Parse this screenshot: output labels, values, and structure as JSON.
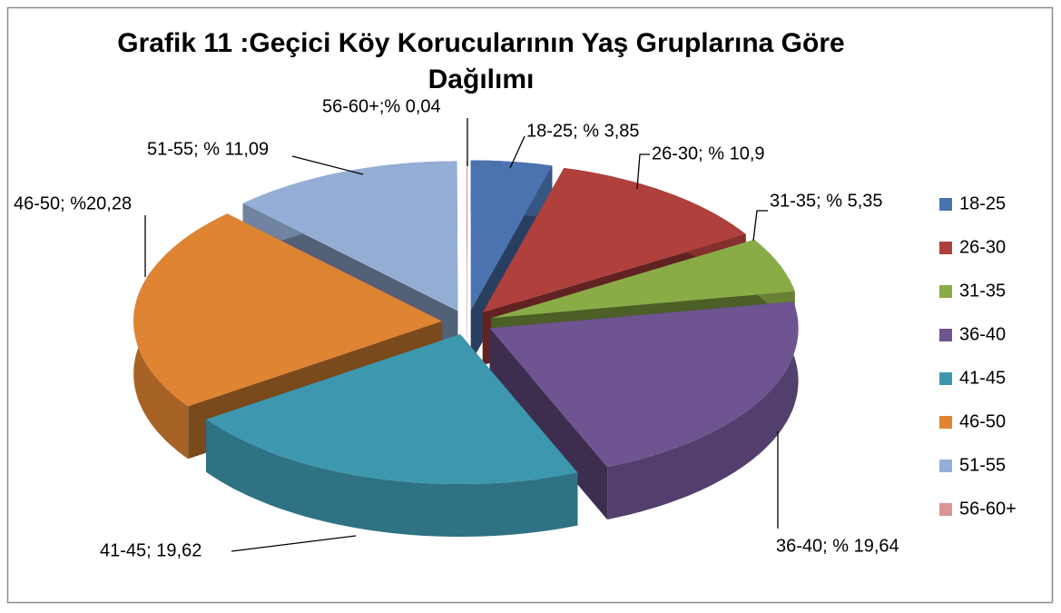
{
  "chart_data": {
    "type": "pie3d",
    "title": "Grafik 11 :Geçici Köy Korucularının Yaş Gruplarına Göre Dağılımı",
    "categories": [
      "18-25",
      "26-30",
      "31-35",
      "36-40",
      "41-45",
      "46-50",
      "51-55",
      "56-60+"
    ],
    "values": [
      3.85,
      10.9,
      5.35,
      19.64,
      19.62,
      20.28,
      11.09,
      0.04
    ],
    "value_labels": [
      "18-25; % 3,85",
      "26-30; % 10,9",
      "31-35; % 5,35",
      "36-40; % 19,64",
      "41-45; 19,62",
      "46-50; %20,28",
      "51-55; % 11,09",
      "56-60+;%  0,04"
    ],
    "colors": [
      "#4a73b0",
      "#b0403c",
      "#8aac46",
      "#6e5491",
      "#3d98af",
      "#de8433",
      "#95aed6",
      "#d99694"
    ],
    "legend": "right"
  }
}
